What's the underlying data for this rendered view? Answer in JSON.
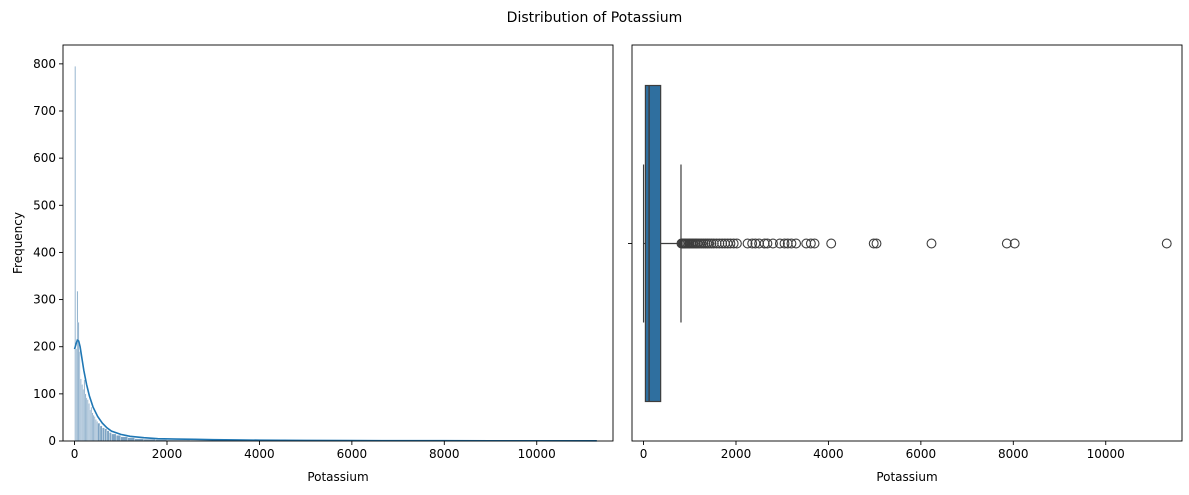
{
  "figure": {
    "suptitle": "Distribution of Potassium"
  },
  "chart_data": [
    {
      "type": "bar",
      "subtype": "histogram-with-kde",
      "title": "",
      "xlabel": "Potassium",
      "ylabel": "Frequency",
      "xlim": [
        -250,
        11650
      ],
      "ylim": [
        0,
        840
      ],
      "xticks": [
        0,
        2000,
        4000,
        6000,
        8000,
        10000
      ],
      "yticks": [
        0,
        100,
        200,
        300,
        400,
        500,
        600,
        700,
        800
      ],
      "grid": false,
      "colors": {
        "bars": "#7ea4c4",
        "bar_edge": "#ffffff",
        "kde": "#1f77b4"
      },
      "bins": [
        {
          "x0": 0,
          "x1": 25,
          "count": 795
        },
        {
          "x0": 25,
          "x1": 50,
          "count": 196
        },
        {
          "x0": 50,
          "x1": 75,
          "count": 318
        },
        {
          "x0": 75,
          "x1": 100,
          "count": 252
        },
        {
          "x0": 100,
          "x1": 125,
          "count": 190
        },
        {
          "x0": 125,
          "x1": 150,
          "count": 132
        },
        {
          "x0": 150,
          "x1": 175,
          "count": 120
        },
        {
          "x0": 175,
          "x1": 200,
          "count": 110
        },
        {
          "x0": 200,
          "x1": 225,
          "count": 130
        },
        {
          "x0": 225,
          "x1": 250,
          "count": 100
        },
        {
          "x0": 250,
          "x1": 275,
          "count": 92
        },
        {
          "x0": 275,
          "x1": 300,
          "count": 88
        },
        {
          "x0": 300,
          "x1": 325,
          "count": 80
        },
        {
          "x0": 325,
          "x1": 350,
          "count": 66
        },
        {
          "x0": 350,
          "x1": 375,
          "count": 72
        },
        {
          "x0": 375,
          "x1": 400,
          "count": 60
        },
        {
          "x0": 400,
          "x1": 425,
          "count": 55
        },
        {
          "x0": 425,
          "x1": 450,
          "count": 52
        },
        {
          "x0": 450,
          "x1": 475,
          "count": 46
        },
        {
          "x0": 475,
          "x1": 500,
          "count": 42
        },
        {
          "x0": 500,
          "x1": 550,
          "count": 38
        },
        {
          "x0": 550,
          "x1": 600,
          "count": 32
        },
        {
          "x0": 600,
          "x1": 650,
          "count": 28
        },
        {
          "x0": 650,
          "x1": 700,
          "count": 26
        },
        {
          "x0": 700,
          "x1": 750,
          "count": 22
        },
        {
          "x0": 750,
          "x1": 800,
          "count": 18
        },
        {
          "x0": 800,
          "x1": 900,
          "count": 15
        },
        {
          "x0": 900,
          "x1": 1000,
          "count": 12
        },
        {
          "x0": 1000,
          "x1": 1150,
          "count": 9
        },
        {
          "x0": 1150,
          "x1": 1300,
          "count": 7
        },
        {
          "x0": 1300,
          "x1": 1500,
          "count": 5
        },
        {
          "x0": 1500,
          "x1": 1750,
          "count": 4
        },
        {
          "x0": 1750,
          "x1": 2000,
          "count": 3
        },
        {
          "x0": 2000,
          "x1": 2500,
          "count": 2
        },
        {
          "x0": 2500,
          "x1": 3000,
          "count": 1.5
        },
        {
          "x0": 3000,
          "x1": 4000,
          "count": 1
        },
        {
          "x0": 4000,
          "x1": 11300,
          "count": 0.5
        }
      ],
      "kde": {
        "x": [
          0,
          30,
          60,
          90,
          120,
          160,
          200,
          260,
          320,
          400,
          500,
          600,
          700,
          800,
          1000,
          1200,
          1500,
          1800,
          2200,
          2600,
          3000,
          3500,
          4000,
          5000,
          6000,
          7000,
          8000,
          9000,
          10000,
          11300
        ],
        "y": [
          195,
          205,
          214,
          212,
          200,
          175,
          150,
          120,
          96,
          72,
          52,
          38,
          28,
          21,
          14,
          10,
          7,
          5,
          4,
          3.5,
          2.8,
          2.2,
          1.8,
          1.2,
          0.9,
          0.7,
          0.6,
          0.5,
          0.5,
          0.4
        ]
      }
    },
    {
      "type": "boxplot",
      "title": "",
      "xlabel": "Potassium",
      "ylabel": "",
      "xlim": [
        -250,
        11650
      ],
      "xticks": [
        0,
        2000,
        4000,
        6000,
        8000,
        10000
      ],
      "grid": false,
      "colors": {
        "box": "#2f6f9f",
        "lines": "#3d3d3d"
      },
      "whislo": 0,
      "q1": 40,
      "median": 120,
      "q3": 370,
      "whishi": 810,
      "fliers": [
        820,
        840,
        860,
        880,
        900,
        920,
        950,
        980,
        1000,
        1030,
        1060,
        1090,
        1120,
        1150,
        1180,
        1220,
        1260,
        1300,
        1340,
        1380,
        1420,
        1470,
        1520,
        1580,
        1640,
        1700,
        1760,
        1820,
        1880,
        1950,
        2020,
        2250,
        2350,
        2420,
        2500,
        2620,
        2680,
        2800,
        2950,
        3050,
        3120,
        3200,
        3300,
        3520,
        3620,
        3700,
        4060,
        4980,
        5040,
        6230,
        7860,
        8030,
        11320
      ]
    }
  ]
}
